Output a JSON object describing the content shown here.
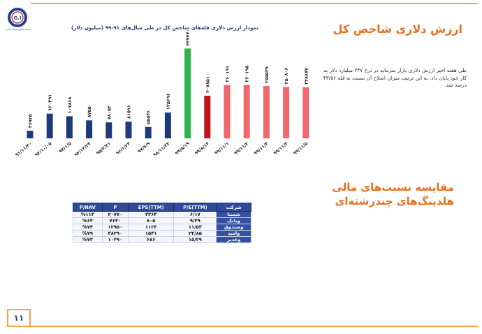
{
  "page": {
    "logo_text": "شرکت مشاور سرمایه گذاری",
    "title": "ارزش دلاری شاخص کل",
    "description": "طی هفته اخیر ارزش دلاری بازار سرمایه در نرخ ۲۴۷ میلیارد دلار به کار خود پایان داد. به این ترتیب میزان اصلاح آن نسبت به قله ۴۳/۵۶ درصد شد.",
    "section_title_line1": "مقایسه نسبت‌های مالی",
    "section_title_line2": "هلدینگ‌های چندرشته‌ای",
    "page_number": "۱۱"
  },
  "chart_data": {
    "type": "bar",
    "title": "نمودار ارزش دلاری قله‌های شاخص کل در طی سال‌های ۹۱-۹۹ (میلیون دلار)",
    "categories": [
      "۹۱/۱۱/۳۰",
      "۹۲/۱۰/۰۵",
      "۹۳/۱/۵",
      "۹۴/۱۲/۲۴",
      "۹۵/۲/۳۱",
      "۹۶/۱/۲۳",
      "۹۷/۷/۹",
      "۹۸/۱۱/۲۴",
      "۹۹/۵/۱۹",
      "۹۹/۸/۱۴",
      "۹۹/۱۱/۱",
      "۹۹/۱۱/۲",
      "۹۹/۱۱/۳",
      "۹۹/۱۱/۴",
      "۹۹/۱۱/۵"
    ],
    "values": [
      36945,
      120391,
      107868,
      87550,
      78053,
      81591,
      55546,
      125696,
      437770,
      207851,
      260191,
      260195,
      255539,
      250806,
      248877
    ],
    "value_labels": [
      "۳۶۹۴۵",
      "۱۲۰۳۹۱",
      "۱۰۷۸۶۸",
      "۸۷۵۵۰",
      "۷۸۰۵۳",
      "۸۱۵۹۱",
      "۵۵۵۴۶",
      "۱۲۵۶۹۶",
      "۴۳۷۷۷۰",
      "۲۰۷۸۵۱",
      "۲۶۰۱۹۱",
      "۲۶۰۱۹۵",
      "۲۵۵۵۳۹",
      "۲۵۰۸۰۶",
      "۲۴۸۸۷۷"
    ],
    "colors": [
      "#1f3a7a",
      "#1f3a7a",
      "#1f3a7a",
      "#1f3a7a",
      "#1f3a7a",
      "#1f3a7a",
      "#1f3a7a",
      "#1f3a7a",
      "#2eb24b",
      "#c0141c",
      "#f0686e",
      "#f0686e",
      "#f0686e",
      "#f0686e",
      "#f0686e"
    ],
    "ylim": [
      0,
      470000
    ],
    "grid": false
  },
  "table": {
    "headers": [
      "P/NAV",
      "P",
      "EPS(TTM)",
      "P/E(TTM)",
      "شرکت"
    ],
    "rows": [
      [
        "%۱۱۳",
        "۲۰۷۷۰",
        "۳۳۶۳",
        "۶/۱۷",
        "شستا"
      ],
      [
        "%۶۴",
        "۷۶۴۰",
        "۸۰۵",
        "۹/۴۹",
        "وبانک"
      ],
      [
        "%۷۴",
        "۱۲۹۵۰",
        "۱۱۲۳",
        "۱۱/۵۳",
        "وصندوق"
      ],
      [
        "%۷۹",
        "۳۸۲۹۰",
        "۱۵۴۱",
        "۲۴/۸۵",
        "وامید"
      ],
      [
        "%۷۳",
        "۱۰۴۹۰",
        "۶۸۶",
        "۱۵/۲۹",
        "وغدیر"
      ]
    ]
  }
}
